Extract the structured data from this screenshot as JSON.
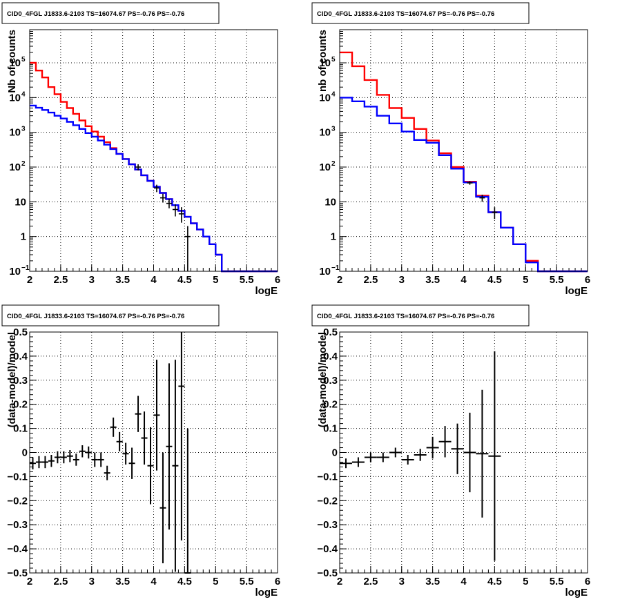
{
  "chart_data": [
    {
      "type": "histogram",
      "title": "CID0_4FGL J1833.6-2103 TS=16074.67 PS=-0.76 PS=-0.76",
      "xlabel": "logE",
      "ylabel": "Nb of counts",
      "xlim": [
        2,
        6
      ],
      "ylim": [
        0.1,
        900000
      ],
      "yscale": "log",
      "grid": true,
      "x_ticks": [
        "2",
        "2.5",
        "3",
        "3.5",
        "4",
        "4.5",
        "5",
        "5.5",
        "6"
      ],
      "y_ticks": [
        {
          "value": 0.1,
          "base": "10",
          "exp": "−1"
        },
        {
          "value": 1,
          "base": "1",
          "exp": ""
        },
        {
          "value": 10,
          "base": "10",
          "exp": ""
        },
        {
          "value": 100,
          "base": "10",
          "exp": "2"
        },
        {
          "value": 1000,
          "base": "10",
          "exp": "3"
        },
        {
          "value": 10000,
          "base": "10",
          "exp": "4"
        },
        {
          "value": 100000,
          "base": "10",
          "exp": "5"
        }
      ],
      "bin_edges": [
        2.0,
        2.1,
        2.2,
        2.3,
        2.4,
        2.5,
        2.6,
        2.7,
        2.8,
        2.9,
        3.0,
        3.1,
        3.2,
        3.3,
        3.4,
        3.5,
        3.6,
        3.7,
        3.8,
        3.9,
        4.0,
        4.1,
        4.2,
        4.3,
        4.4,
        4.5,
        4.6,
        4.7,
        4.8,
        4.9,
        5.0,
        5.1,
        5.2,
        5.3,
        5.4,
        5.5,
        5.6,
        5.7,
        5.8,
        5.9,
        6.0
      ],
      "series": [
        {
          "color": "#ff0000",
          "values": [
            100000,
            60000,
            38000,
            20000,
            12500,
            7500,
            5000,
            3400,
            2200,
            1500,
            1050,
            750,
            520,
            350,
            240,
            170,
            120,
            85,
            58,
            40,
            27,
            18,
            12,
            8,
            5.5,
            3.7,
            2.4,
            1.6,
            1.0,
            0.6,
            0.3,
            0.1,
            0.1,
            0.1,
            0.1,
            0.1,
            0.1,
            0.1,
            0.1,
            0.1
          ]
        },
        {
          "color": "#0000ff",
          "values": [
            5900,
            5100,
            4400,
            3700,
            3000,
            2500,
            2000,
            1600,
            1250,
            950,
            750,
            580,
            440,
            330,
            240,
            170,
            120,
            85,
            58,
            40,
            27,
            18,
            12,
            8,
            5.5,
            3.7,
            2.4,
            1.6,
            1.0,
            0.6,
            0.3,
            0.1,
            0.1,
            0.1,
            0.1,
            0.1,
            0.1,
            0.1,
            0.1,
            0.1
          ]
        }
      ],
      "data_points": [
        {
          "x": 3.75,
          "y": 100,
          "lo": 80,
          "hi": 120
        },
        {
          "x": 4.05,
          "y": 25,
          "lo": 19,
          "hi": 31
        },
        {
          "x": 4.15,
          "y": 13,
          "lo": 9.5,
          "hi": 17
        },
        {
          "x": 4.25,
          "y": 9,
          "lo": 6.5,
          "hi": 12
        },
        {
          "x": 4.35,
          "y": 6,
          "lo": 3.8,
          "hi": 8.5
        },
        {
          "x": 4.45,
          "y": 4.5,
          "lo": 2.5,
          "hi": 7
        },
        {
          "x": 4.55,
          "y": 1.0,
          "lo": 0.1,
          "hi": 2.0
        }
      ]
    },
    {
      "type": "histogram",
      "title": "CID0_4FGL J1833.6-2103 TS=16074.67 PS=-0.76 PS=-0.76",
      "xlabel": "logE",
      "ylabel": "nb of counts",
      "xlim": [
        2,
        6
      ],
      "ylim": [
        0.1,
        900000
      ],
      "yscale": "log",
      "grid": true,
      "x_ticks": [
        "2",
        "2.5",
        "3",
        "3.5",
        "4",
        "4.5",
        "5",
        "5.5",
        "6"
      ],
      "y_ticks": [
        {
          "value": 0.1,
          "base": "10",
          "exp": "−1"
        },
        {
          "value": 1,
          "base": "1",
          "exp": ""
        },
        {
          "value": 10,
          "base": "10",
          "exp": ""
        },
        {
          "value": 100,
          "base": "10",
          "exp": "2"
        },
        {
          "value": 1000,
          "base": "10",
          "exp": "3"
        },
        {
          "value": 10000,
          "base": "10",
          "exp": "4"
        },
        {
          "value": 100000,
          "base": "10",
          "exp": "5"
        }
      ],
      "bin_edges": [
        2.0,
        2.2,
        2.4,
        2.6,
        2.8,
        3.0,
        3.2,
        3.4,
        3.6,
        3.8,
        4.0,
        4.2,
        4.4,
        4.6,
        4.8,
        5.0,
        5.2,
        5.4,
        5.6,
        5.8,
        6.0
      ],
      "series": [
        {
          "color": "#ff0000",
          "values": [
            200000,
            80000,
            32000,
            12000,
            5000,
            2600,
            1250,
            580,
            250,
            100,
            38,
            15,
            5,
            1.8,
            0.6,
            0.2,
            0.1,
            0.1,
            0.1,
            0.1
          ]
        },
        {
          "color": "#0000ff",
          "values": [
            10000,
            7800,
            5500,
            3000,
            1800,
            1050,
            600,
            500,
            220,
            90,
            36,
            14,
            5,
            1.8,
            0.6,
            0.18,
            0.1,
            0.1,
            0.1,
            0.1
          ]
        }
      ],
      "data_points": [
        {
          "x": 4.1,
          "y": 35,
          "lo": 31,
          "hi": 39
        },
        {
          "x": 4.3,
          "y": 13,
          "lo": 10,
          "hi": 16
        },
        {
          "x": 4.5,
          "y": 5,
          "lo": 3.2,
          "hi": 7
        }
      ]
    },
    {
      "type": "scatter",
      "title": "CID0_4FGL J1833.6-2103 TS=16074.67 PS=-0.76 PS=-0.76",
      "xlabel": "logE",
      "ylabel": "(data-model)/model",
      "xlim": [
        2,
        6
      ],
      "ylim": [
        -0.5,
        0.5
      ],
      "yscale": "linear",
      "grid": true,
      "x_ticks": [
        "2",
        "2.5",
        "3",
        "3.5",
        "4",
        "4.5",
        "5",
        "5.5",
        "6"
      ],
      "y_ticks": [
        "−0.5",
        "−0.4",
        "−0.3",
        "−0.2",
        "−0.1",
        "0",
        "0.1",
        "0.2",
        "0.3",
        "0.4",
        "0.5"
      ],
      "y_tick_values": [
        -0.5,
        -0.4,
        -0.3,
        -0.2,
        -0.1,
        0,
        0.1,
        0.2,
        0.3,
        0.4,
        0.5
      ],
      "x_halfwidth": 0.05,
      "points": [
        {
          "x": 2.05,
          "y": -0.045,
          "err": 0.025
        },
        {
          "x": 2.15,
          "y": -0.04,
          "err": 0.025
        },
        {
          "x": 2.25,
          "y": -0.04,
          "err": 0.025
        },
        {
          "x": 2.35,
          "y": -0.035,
          "err": 0.025
        },
        {
          "x": 2.45,
          "y": -0.02,
          "err": 0.025
        },
        {
          "x": 2.55,
          "y": -0.02,
          "err": 0.025
        },
        {
          "x": 2.65,
          "y": -0.015,
          "err": 0.025
        },
        {
          "x": 2.75,
          "y": -0.03,
          "err": 0.025
        },
        {
          "x": 2.85,
          "y": 0.005,
          "err": 0.025
        },
        {
          "x": 2.95,
          "y": 0.0,
          "err": 0.025
        },
        {
          "x": 3.05,
          "y": -0.03,
          "err": 0.03
        },
        {
          "x": 3.15,
          "y": -0.03,
          "err": 0.03
        },
        {
          "x": 3.25,
          "y": -0.085,
          "err": 0.03
        },
        {
          "x": 3.35,
          "y": 0.105,
          "err": 0.04
        },
        {
          "x": 3.45,
          "y": 0.045,
          "err": 0.04
        },
        {
          "x": 3.55,
          "y": -0.005,
          "err": 0.045
        },
        {
          "x": 3.65,
          "y": -0.045,
          "err": 0.065
        },
        {
          "x": 3.75,
          "y": 0.16,
          "err": 0.075
        },
        {
          "x": 3.85,
          "y": 0.06,
          "err": 0.11
        },
        {
          "x": 3.95,
          "y": -0.055,
          "err": 0.16
        },
        {
          "x": 4.05,
          "y": 0.155,
          "err": 0.23
        },
        {
          "x": 4.15,
          "y": -0.23,
          "err": 0.23
        },
        {
          "x": 4.25,
          "y": 0.025,
          "err": 0.345
        },
        {
          "x": 4.35,
          "y": -0.055,
          "err": 0.44
        },
        {
          "x": 4.45,
          "y": 0.275,
          "err": 0.64
        },
        {
          "x": 4.55,
          "y": -0.5,
          "err": 0.6
        }
      ]
    },
    {
      "type": "scatter",
      "title": "CID0_4FGL J1833.6-2103 TS=16074.67 PS=-0.76 PS=-0.76",
      "xlabel": "logE",
      "ylabel": "(data-model)/model",
      "xlim": [
        2,
        6
      ],
      "ylim": [
        -0.5,
        0.5
      ],
      "yscale": "linear",
      "grid": true,
      "x_ticks": [
        "2",
        "2.5",
        "3",
        "3.5",
        "4",
        "4.5",
        "5",
        "5.5",
        "6"
      ],
      "y_ticks": [
        "−0.5",
        "−0.4",
        "−0.3",
        "−0.2",
        "−0.1",
        "0",
        "0.1",
        "0.2",
        "0.3",
        "0.4",
        "0.5"
      ],
      "y_tick_values": [
        -0.5,
        -0.4,
        -0.3,
        -0.2,
        -0.1,
        0,
        0.1,
        0.2,
        0.3,
        0.4,
        0.5
      ],
      "x_halfwidth": 0.1,
      "points": [
        {
          "x": 2.1,
          "y": -0.045,
          "err": 0.02
        },
        {
          "x": 2.3,
          "y": -0.04,
          "err": 0.02
        },
        {
          "x": 2.5,
          "y": -0.02,
          "err": 0.02
        },
        {
          "x": 2.7,
          "y": -0.02,
          "err": 0.02
        },
        {
          "x": 2.9,
          "y": 0.0,
          "err": 0.02
        },
        {
          "x": 3.1,
          "y": -0.03,
          "err": 0.02
        },
        {
          "x": 3.3,
          "y": -0.01,
          "err": 0.025
        },
        {
          "x": 3.5,
          "y": 0.02,
          "err": 0.045
        },
        {
          "x": 3.7,
          "y": 0.045,
          "err": 0.065
        },
        {
          "x": 3.9,
          "y": 0.015,
          "err": 0.105
        },
        {
          "x": 4.1,
          "y": 0.0,
          "err": 0.165
        },
        {
          "x": 4.3,
          "y": -0.005,
          "err": 0.265
        },
        {
          "x": 4.5,
          "y": -0.015,
          "err": 0.435
        }
      ]
    }
  ]
}
